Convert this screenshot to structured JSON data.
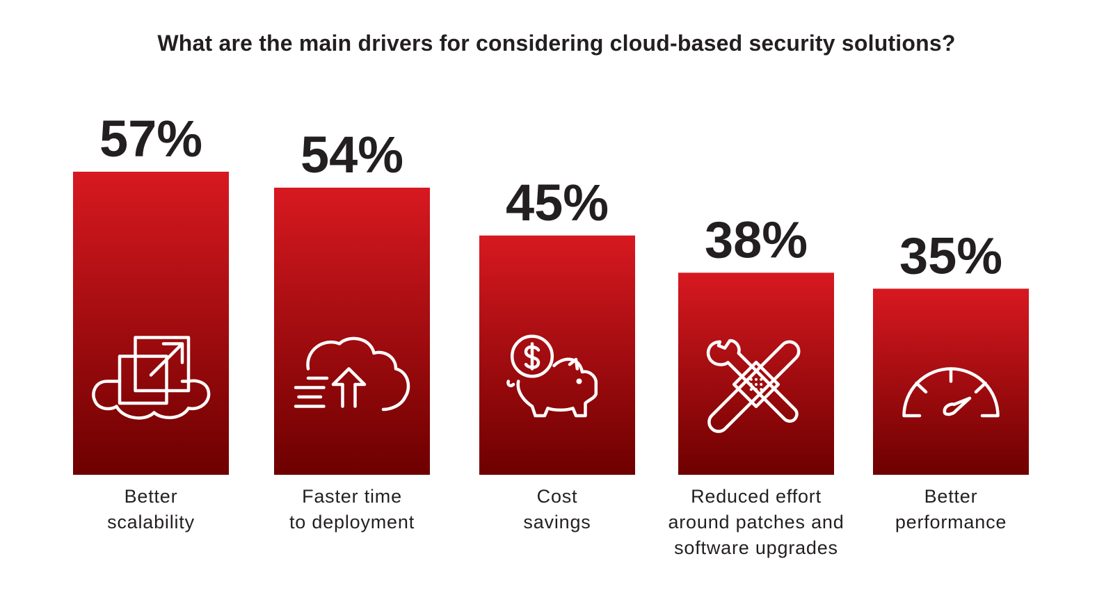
{
  "chart_data": {
    "type": "bar",
    "title": "What are the main drivers for considering cloud-based security solutions?",
    "categories": [
      [
        "Better",
        "scalability"
      ],
      [
        "Faster time",
        "to deployment"
      ],
      [
        "Cost",
        "savings"
      ],
      [
        "Reduced effort",
        "around patches and",
        "software upgrades"
      ],
      [
        "Better",
        "performance"
      ]
    ],
    "values": [
      57,
      54,
      45,
      38,
      35
    ],
    "value_labels": [
      "57%",
      "54%",
      "45%",
      "38%",
      "35%"
    ],
    "icons": [
      "cloud-scale-icon",
      "cloud-upload-icon",
      "piggy-bank-dollar-icon",
      "wrench-bandage-icon",
      "speedometer-icon"
    ],
    "ylim": [
      0,
      57
    ],
    "xlabel": "",
    "ylabel": "",
    "grid": false,
    "colors": {
      "bar_top": "#d71920",
      "bar_bottom": "#6e0000",
      "icon": "#ffffff",
      "text": "#231f20"
    }
  }
}
